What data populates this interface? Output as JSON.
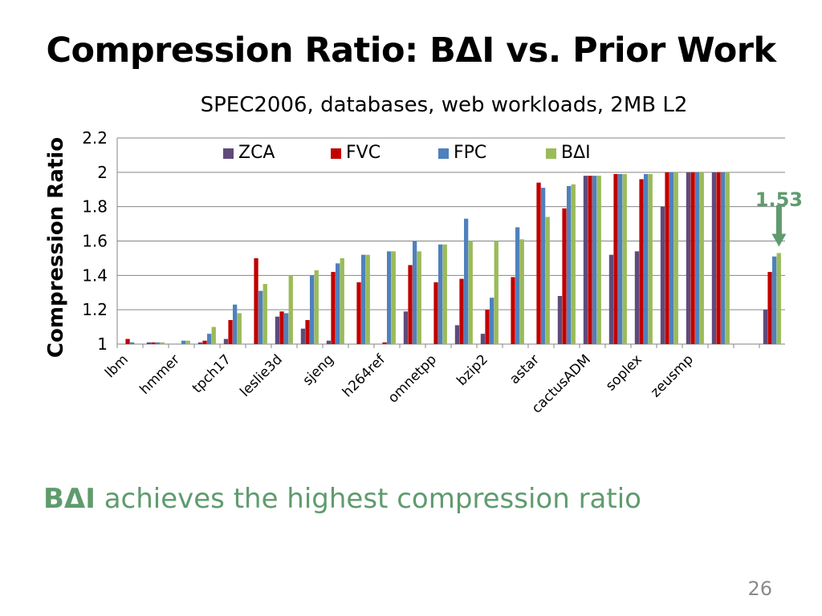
{
  "slide": {
    "title": "Compression Ratio: BΔI vs. Prior Work",
    "conclusion_bold": "BΔI",
    "conclusion_rest": " achieves the highest compression ratio",
    "page_number": "26"
  },
  "colors": {
    "ZCA": "#604a7b",
    "FVC": "#c00000",
    "FPC": "#4f81bd",
    "BΔI": "#9bbb59",
    "annotation": "#5f9b6e",
    "axis": "#868686"
  },
  "chart_data": {
    "type": "bar",
    "title": "SPEC2006, databases, web workloads, 2MB L2",
    "xlabel": "",
    "ylabel": "Compression Ratio",
    "ylim": [
      1,
      2.2
    ],
    "yticks": [
      "1",
      "1.2",
      "1.4",
      "1.6",
      "1.8",
      "2",
      "2.2"
    ],
    "grid": "horizontal",
    "legend_position": "top",
    "categories": [
      "lbm",
      "",
      "hmmer",
      "",
      "tpch17",
      "",
      "leslie3d",
      "",
      "sjeng",
      "",
      "h264ref",
      "",
      "omnetpp",
      "",
      "bzip2",
      "",
      "astar",
      "",
      "cactusADM",
      "",
      "soplex",
      "",
      "zeusmp",
      "",
      "",
      ""
    ],
    "visible_category_labels": [
      "lbm",
      "hmmer",
      "tpch17",
      "leslie3d",
      "sjeng",
      "h264ref",
      "omnetpp",
      "bzip2",
      "astar",
      "cactusADM",
      "soplex",
      "zeusmp"
    ],
    "series": [
      {
        "name": "ZCA",
        "values": [
          1.0,
          1.01,
          1.0,
          1.01,
          1.03,
          1.0,
          1.16,
          1.09,
          1.02,
          1.0,
          1.0,
          1.19,
          1.0,
          1.11,
          1.06,
          1.0,
          1.0,
          1.28,
          1.98,
          1.52,
          1.54,
          1.8,
          2.0,
          2.0,
          1.0,
          1.2
        ]
      },
      {
        "name": "FVC",
        "values": [
          1.03,
          1.01,
          1.0,
          1.02,
          1.14,
          1.5,
          1.19,
          1.14,
          1.42,
          1.36,
          1.01,
          1.46,
          1.36,
          1.38,
          1.2,
          1.39,
          1.94,
          1.79,
          1.98,
          1.99,
          1.96,
          2.0,
          2.0,
          2.0,
          1.0,
          1.42
        ]
      },
      {
        "name": "FPC",
        "values": [
          1.01,
          1.01,
          1.02,
          1.06,
          1.23,
          1.31,
          1.18,
          1.4,
          1.47,
          1.52,
          1.54,
          1.6,
          1.58,
          1.73,
          1.27,
          1.68,
          1.91,
          1.92,
          1.98,
          1.99,
          1.99,
          2.0,
          2.0,
          2.0,
          1.0,
          1.51
        ]
      },
      {
        "name": "BΔI",
        "values": [
          1.0,
          1.01,
          1.02,
          1.1,
          1.18,
          1.35,
          1.4,
          1.43,
          1.5,
          1.52,
          1.54,
          1.54,
          1.58,
          1.6,
          1.6,
          1.61,
          1.74,
          1.93,
          1.98,
          1.99,
          1.99,
          2.0,
          2.0,
          2.0,
          1.0,
          1.53
        ]
      }
    ],
    "annotations": [
      {
        "text": "1.53",
        "target_category_index": 25,
        "target_series": "BΔI",
        "arrow": "down"
      }
    ]
  }
}
